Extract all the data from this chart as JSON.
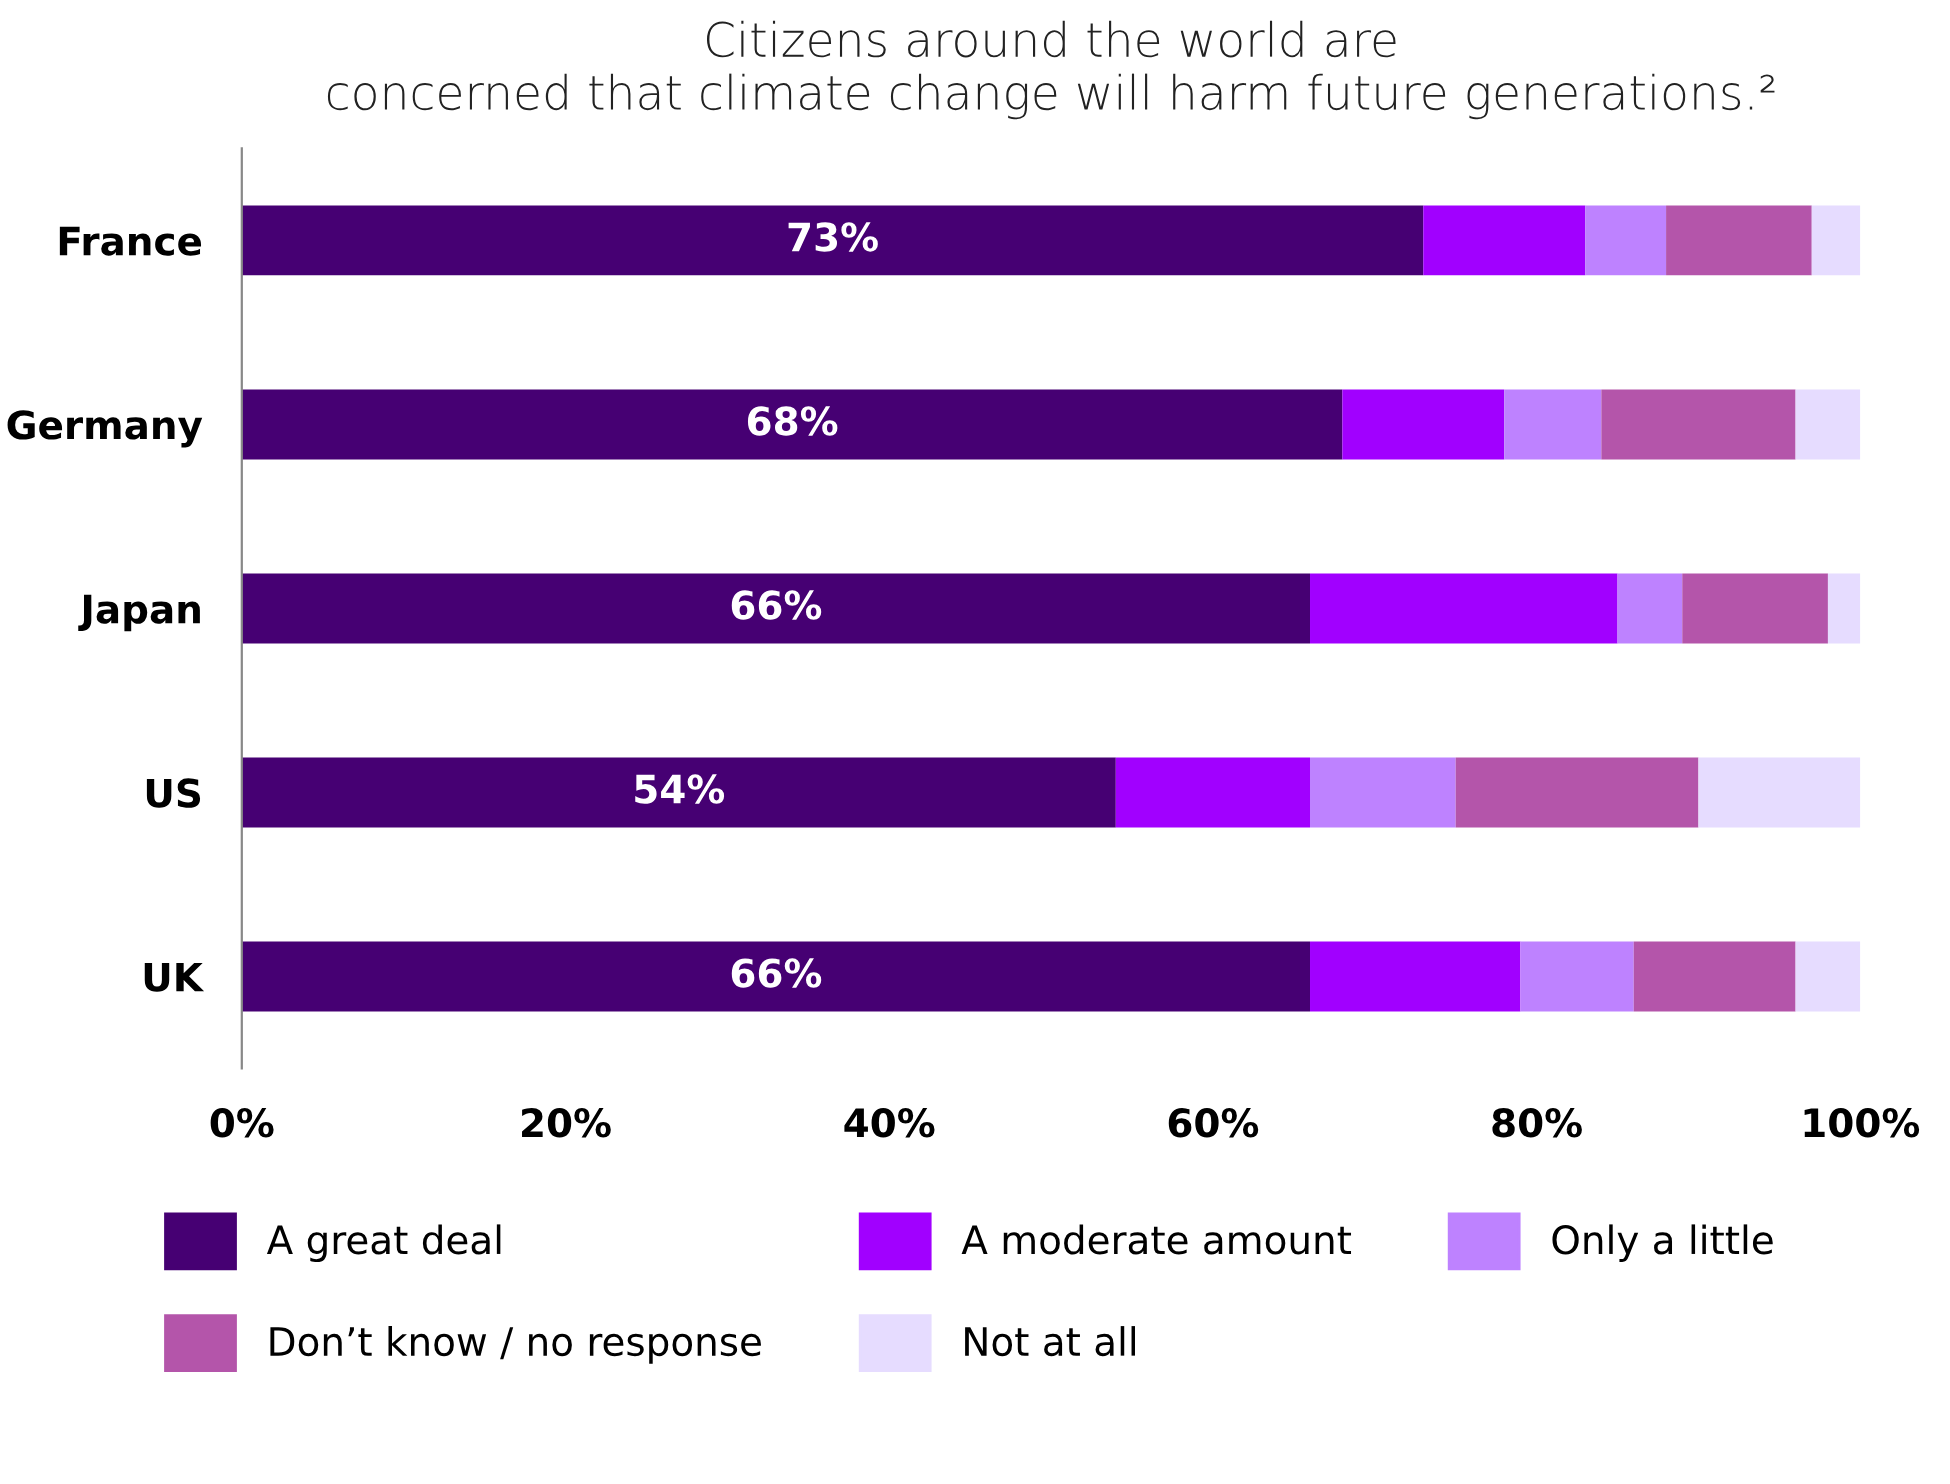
{
  "chart_data": {
    "type": "bar",
    "orientation": "horizontal",
    "stacked": true,
    "title": "Citizens around the world are\nconcerned that climate change will harm future generations.²",
    "categories": [
      "France",
      "Germany",
      "Japan",
      "US",
      "UK"
    ],
    "series": [
      {
        "name": "A great deal",
        "color": "#460073",
        "values": [
          73,
          68,
          66,
          54,
          66
        ],
        "value_labels": [
          "73%",
          "68%",
          "66%",
          "54%",
          "66%"
        ]
      },
      {
        "name": "A moderate amount",
        "color": "#a100ff",
        "values": [
          10,
          10,
          19,
          12,
          13
        ]
      },
      {
        "name": "Only a little",
        "color": "#be82ff",
        "values": [
          5,
          6,
          4,
          9,
          7
        ]
      },
      {
        "name": "Don’t know / no response",
        "color": "#b455aa",
        "values": [
          9,
          12,
          9,
          15,
          10
        ]
      },
      {
        "name": "Not at all",
        "color": "#e6dcff",
        "values": [
          3,
          4,
          2,
          10,
          4
        ]
      }
    ],
    "xlim": [
      0,
      100
    ],
    "xticks": [
      {
        "value": 0,
        "label": "0%"
      },
      {
        "value": 20,
        "label": "20%"
      },
      {
        "value": 40,
        "label": "40%"
      },
      {
        "value": 60,
        "label": "60%"
      },
      {
        "value": 80,
        "label": "80%"
      },
      {
        "value": 100,
        "label": "100%"
      }
    ],
    "grid": false,
    "legend": "bottom"
  }
}
